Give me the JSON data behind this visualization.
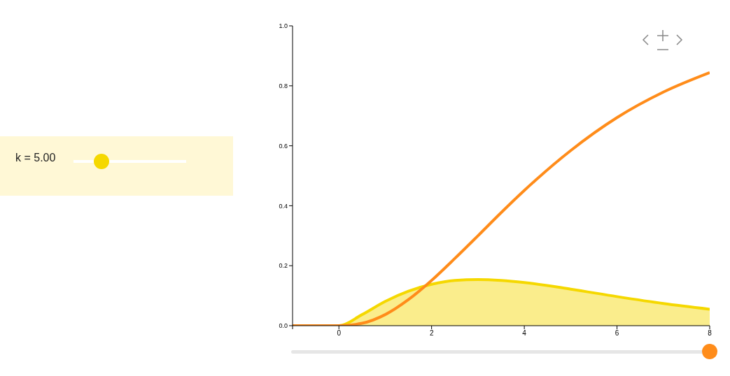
{
  "chart_data": {
    "type": "line",
    "x": [
      -1,
      0,
      0.5,
      1,
      1.5,
      2,
      2.5,
      3,
      3.5,
      4,
      5,
      6,
      7,
      8
    ],
    "series": [
      {
        "type": "area",
        "color": "#f5d800",
        "values": [
          0,
          0,
          0.037,
          0.081,
          0.115,
          0.138,
          0.151,
          0.154,
          0.151,
          0.144,
          0.122,
          0.097,
          0.074,
          0.055
        ]
      },
      {
        "color": "#ff8c1a",
        "values": [
          0,
          0,
          0.008,
          0.037,
          0.087,
          0.151,
          0.224,
          0.3,
          0.377,
          0.451,
          0.584,
          0.694,
          0.779,
          0.844
        ]
      }
    ],
    "xlim": [
      -1,
      8
    ],
    "xticks": [
      {
        "value": -1,
        "label": null
      },
      0,
      2,
      4,
      6,
      8
    ],
    "ylim": [
      0,
      1
    ],
    "yticks": [
      {
        "value": 0,
        "label": "0.0"
      },
      0.2,
      0.4,
      0.6,
      0.8,
      {
        "value": 1,
        "label": "1.0"
      }
    ],
    "marker": "none",
    "annotations": [
      "k = 5.00"
    ]
  }
}
